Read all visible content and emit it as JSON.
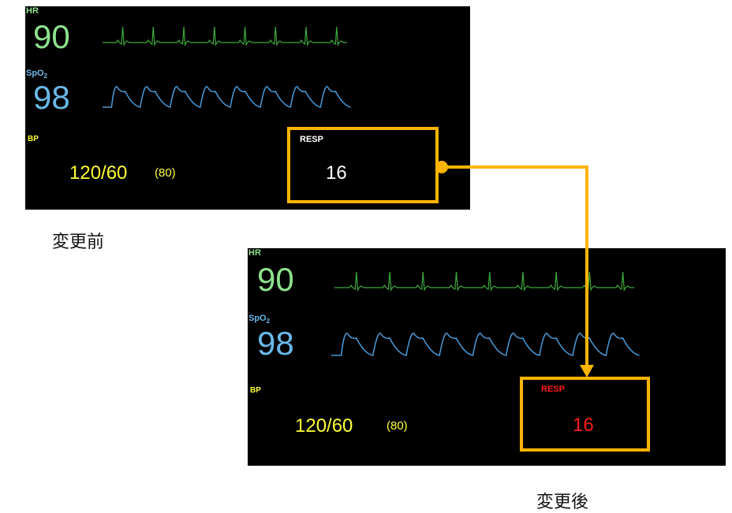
{
  "before": {
    "hr_label": "HR",
    "hr_value": "90",
    "spo2_label": "SpO",
    "spo2_sub": "2",
    "spo2_value": "98",
    "bp_label": "BP",
    "bp_value": "120/60",
    "bp_mean": "(80)",
    "resp_label": "RESP",
    "resp_value": "16"
  },
  "after": {
    "hr_label": "HR",
    "hr_value": "90",
    "spo2_label": "SpO",
    "spo2_sub": "2",
    "spo2_value": "98",
    "bp_label": "BP",
    "bp_value": "120/60",
    "bp_mean": "(80)",
    "resp_label": "RESP",
    "resp_value": "16"
  },
  "captions": {
    "before": "変更前",
    "after": "変更後"
  },
  "colors": {
    "hr": "#8ee28e",
    "spo2": "#6ab8e8",
    "bp": "#ffff33",
    "resp_before": "#ffffff",
    "resp_after": "#ff1a1a",
    "highlight": "#ffb400",
    "ecg_wave": "#3da83d",
    "pleth_wave": "#4a9ad8"
  }
}
